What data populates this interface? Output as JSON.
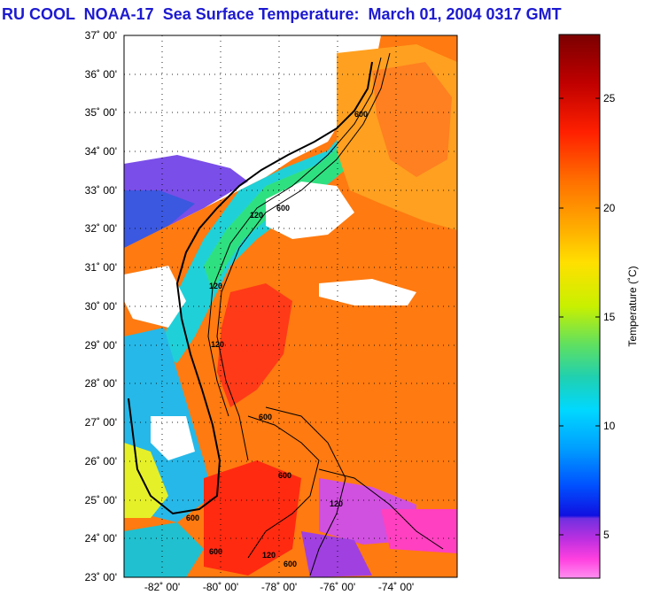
{
  "header": {
    "title": "RU COOL  NOAA-17  Sea Surface Temperature:  March 01, 2004 0317 GMT"
  },
  "map": {
    "lat_labels": [
      "37˚ 00'",
      "36˚ 00'",
      "35˚ 00'",
      "34˚ 00'",
      "33˚ 00'",
      "32˚ 00'",
      "31˚ 00'",
      "30˚ 00'",
      "29˚ 00'",
      "28˚ 00'",
      "27˚ 00'",
      "26˚ 00'",
      "25˚ 00'",
      "24˚ 00'",
      "23˚ 00'"
    ],
    "lon_labels": [
      "-82˚ 00'",
      "-80˚ 00'",
      "-78˚ 00'",
      "-76˚ 00'",
      "-74˚ 00'"
    ],
    "contour_labels": [
      "600",
      "120",
      "600",
      "120",
      "600",
      "120",
      "600",
      "120",
      "600",
      "600",
      "120",
      "600"
    ]
  },
  "colorbar": {
    "label": "Temperature (˚C)",
    "ticks": [
      "25",
      "20",
      "15",
      "10",
      "5"
    ],
    "colors": [
      "#7b0000",
      "#c00000",
      "#ff2000",
      "#ff7000",
      "#ffb000",
      "#ffe000",
      "#c8f000",
      "#60e060",
      "#20d0b0",
      "#00d8ff",
      "#00a0ff",
      "#0050ff",
      "#1010e0",
      "#7030e0",
      "#c030e0",
      "#ff40e0",
      "#ff90f0"
    ]
  }
}
